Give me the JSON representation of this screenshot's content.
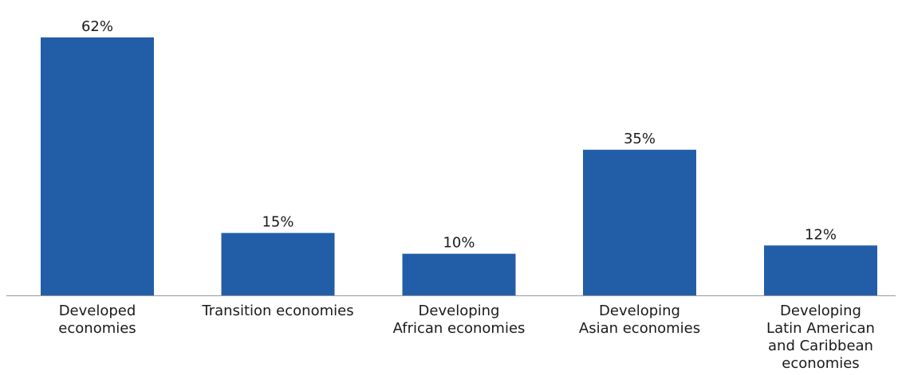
{
  "chart_data": {
    "type": "bar",
    "categories": [
      [
        "Developed",
        "economies"
      ],
      [
        "Transition economies"
      ],
      [
        "Developing",
        "African economies"
      ],
      [
        "Developing",
        "Asian economies"
      ],
      [
        "Developing",
        "Latin American",
        "and Caribbean",
        "economies"
      ]
    ],
    "values": [
      62,
      15,
      10,
      35,
      12
    ],
    "value_labels": [
      "62%",
      "15%",
      "10%",
      "35%",
      "12%"
    ],
    "unit": "%",
    "ylim": [
      0,
      62
    ],
    "grid": false,
    "legend": "none",
    "bar_color": "#225EA8",
    "axis_color": "#9a9a9a"
  }
}
